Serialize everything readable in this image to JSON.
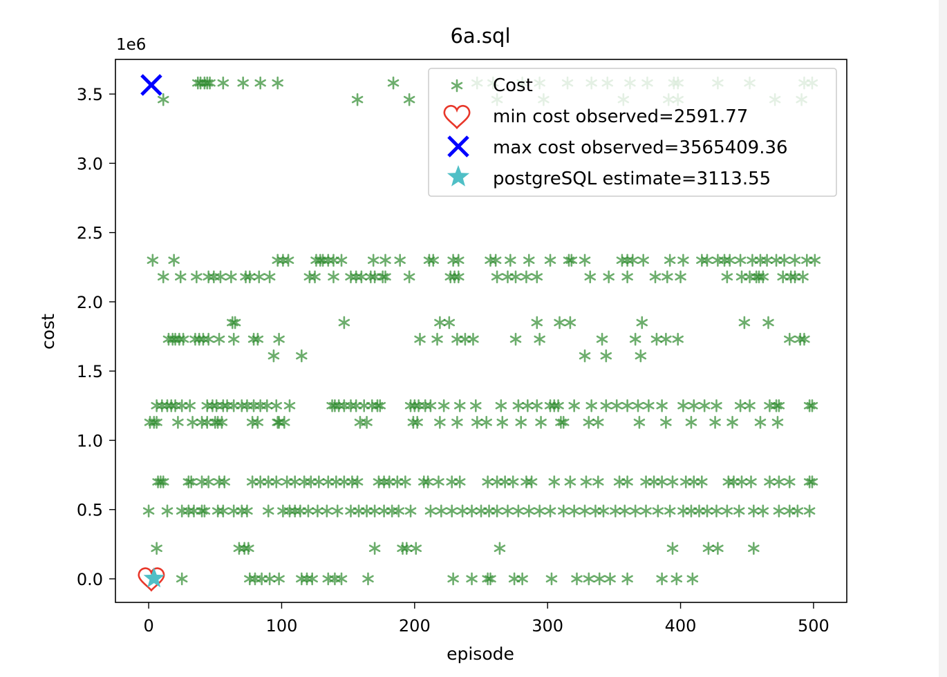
{
  "chart_data": {
    "type": "scatter",
    "title": "6a.sql",
    "xlabel": "episode",
    "ylabel": "cost",
    "y_offset_text": "1e6",
    "xlim": [
      -25,
      525
    ],
    "ylim": [
      -170000,
      3750000
    ],
    "xticks": [
      0,
      100,
      200,
      300,
      400,
      500
    ],
    "xtick_labels": [
      "0",
      "100",
      "200",
      "300",
      "400",
      "500"
    ],
    "yticks": [
      0,
      500000,
      1000000,
      1500000,
      2000000,
      2500000,
      3000000,
      3500000
    ],
    "ytick_labels": [
      "0.0",
      "0.5",
      "1.0",
      "1.5",
      "2.0",
      "2.5",
      "3.0",
      "3.5"
    ],
    "grid": false,
    "legend_position": "upper right",
    "colors": {
      "cost": "#2e8b2e",
      "min": "#e8372a",
      "max": "#0000ff",
      "pg": "#4fbfc6"
    },
    "series": [
      {
        "name": "Cost",
        "marker": "asterisk",
        "levels": [
          {
            "y": 3580000,
            "x": [
              37,
              39,
              42,
              44,
              46,
              56,
              71,
              84,
              97,
              184,
              247,
              259,
              281,
              294,
              315,
              333,
              345,
              362,
              375,
              395,
              398,
              428,
              452,
              493,
              499
            ]
          },
          {
            "y": 3460000,
            "x": [
              11,
              157,
              196,
              262,
              297,
              357,
              391,
              398,
              471,
              491
            ]
          },
          {
            "y": 2300000,
            "x": [
              3,
              19,
              97,
              101,
              105,
              126,
              129,
              131,
              135,
              139,
              145,
              169,
              178,
              189,
              211,
              214,
              229,
              233,
              257,
              261,
              272,
              286,
              302,
              316,
              318,
              328,
              356,
              360,
              364,
              372,
              392,
              402,
              416,
              420,
              428,
              433,
              437,
              445,
              454,
              460,
              465,
              472,
              478,
              486,
              495,
              501
            ]
          },
          {
            "y": 2180000,
            "x": [
              11,
              24,
              36,
              45,
              49,
              54,
              62,
              73,
              76,
              83,
              91,
              121,
              125,
              139,
              152,
              156,
              160,
              167,
              170,
              176,
              178,
              196,
              227,
              230,
              233,
              262,
              270,
              276,
              284,
              292,
              332,
              346,
              360,
              381,
              390,
              400,
              435,
              446,
              452,
              457,
              459,
              462,
              477,
              483,
              486,
              492
            ]
          },
          {
            "y": 1850000,
            "x": [
              63,
              65,
              147,
              219,
              226,
              292,
              309,
              317,
              371,
              448,
              466
            ]
          },
          {
            "y": 1730000,
            "x": [
              15,
              18,
              20,
              23,
              26,
              35,
              38,
              41,
              45,
              53,
              64,
              79,
              82,
              98,
              204,
              217,
              232,
              238,
              244,
              276,
              294,
              341,
              366,
              382,
              389,
              398,
              482,
              490,
              493
            ]
          },
          {
            "y": 1610000,
            "x": [
              94,
              115,
              328,
              344,
              370
            ]
          },
          {
            "y": 1250000,
            "x": [
              6,
              10,
              14,
              17,
              20,
              25,
              31,
              44,
              48,
              51,
              56,
              59,
              64,
              70,
              74,
              79,
              84,
              89,
              96,
              106,
              138,
              140,
              143,
              147,
              152,
              156,
              162,
              168,
              172,
              174,
              197,
              200,
              203,
              208,
              212,
              222,
              234,
              246,
              265,
              278,
              285,
              292,
              302,
              305,
              308,
              320,
              333,
              344,
              352,
              360,
              368,
              376,
              386,
              402,
              410,
              418,
              427,
              445,
              452,
              467,
              472,
              474,
              497,
              499
            ]
          },
          {
            "y": 1130000,
            "x": [
              1,
              4,
              6,
              22,
              33,
              40,
              44,
              50,
              52,
              55,
              78,
              82,
              97,
              98,
              102,
              159,
              164,
              199,
              202,
              219,
              232,
              247,
              254,
              266,
              280,
              295,
              310,
              312,
              331,
              338,
              369,
              389,
              408,
              426,
              439,
              460,
              473
            ]
          },
          {
            "y": 700000,
            "x": [
              7,
              9,
              11,
              30,
              32,
              40,
              45,
              53,
              57,
              78,
              84,
              90,
              96,
              104,
              110,
              117,
              122,
              128,
              135,
              141,
              147,
              153,
              157,
              173,
              177,
              181,
              187,
              193,
              207,
              210,
              218,
              228,
              234,
              255,
              262,
              268,
              274,
              284,
              288,
              305,
              317,
              329,
              338,
              354,
              360,
              374,
              380,
              386,
              394,
              404,
              410,
              416,
              436,
              440,
              446,
              453,
              467,
              474,
              482,
              497,
              499
            ]
          },
          {
            "y": 490000,
            "x": [
              0,
              14,
              25,
              30,
              34,
              40,
              42,
              52,
              56,
              64,
              70,
              74,
              90,
              101,
              106,
              110,
              114,
              120,
              127,
              134,
              142,
              152,
              158,
              164,
              170,
              177,
              183,
              188,
              197,
              212,
              220,
              228,
              236,
              243,
              250,
              256,
              262,
              270,
              278,
              286,
              294,
              302,
              312,
              320,
              328,
              336,
              342,
              351,
              358,
              366,
              374,
              383,
              392,
              402,
              408,
              414,
              420,
              427,
              435,
              444,
              455,
              462,
              474,
              482,
              488,
              497
            ]
          },
          {
            "y": 220000,
            "x": [
              6,
              68,
              72,
              75,
              170,
              191,
              194,
              201,
              264,
              394,
              421,
              428,
              455
            ]
          },
          {
            "y": 0,
            "x": [
              25,
              76,
              80,
              85,
              91,
              98,
              115,
              119,
              123,
              135,
              140,
              145,
              165,
              229,
              243,
              255,
              257,
              275,
              281,
              303,
              322,
              331,
              339,
              347,
              360,
              386,
              397,
              409
            ]
          }
        ]
      },
      {
        "name": "min cost observed=2591.77",
        "marker": "heart",
        "x": 2,
        "y": 2591.77
      },
      {
        "name": "max cost observed=3565409.36",
        "marker": "x",
        "x": 2,
        "y": 3565409.36
      },
      {
        "name": "postgreSQL estimate=3113.55",
        "marker": "star",
        "x": 4,
        "y": 3113.55
      }
    ]
  }
}
